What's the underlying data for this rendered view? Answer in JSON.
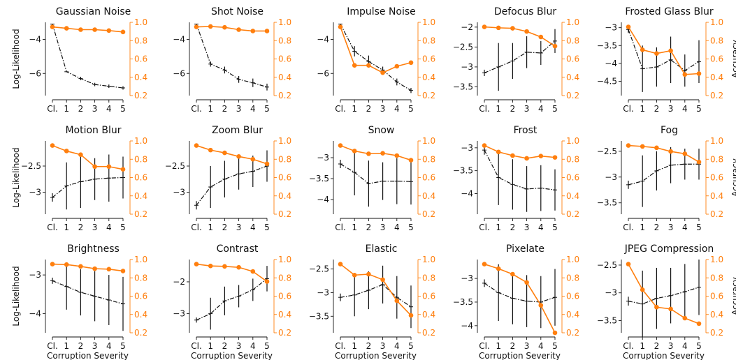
{
  "figure": {
    "severity_labels": [
      "Cl.",
      "1",
      "2",
      "3",
      "4",
      "5"
    ],
    "xlabel": "Corruption Severity",
    "ylabel_left": "Log-Likelihood",
    "ylabel_right": "Accuracy",
    "colors": {
      "loglik": "#111111",
      "accuracy": "#ff7f0e"
    }
  },
  "chart_data": [
    {
      "type": "line",
      "title": "Gaussian Noise",
      "x": [
        "Cl.",
        "1",
        "2",
        "3",
        "4",
        "5"
      ],
      "ylim_left": [
        -7.3,
        -3.0
      ],
      "yticks_left": [
        -4,
        -6
      ],
      "ylim_right": [
        0.2,
        1.0
      ],
      "yticks_right": [
        1.0,
        0.8,
        0.6,
        0.4,
        0.2
      ],
      "series": [
        {
          "name": "Log-Likelihood",
          "axis": "left",
          "style": "dash-dot",
          "values": [
            -3.1,
            -5.9,
            -6.3,
            -6.65,
            -6.75,
            -6.85
          ],
          "err": [
            0,
            0,
            0.1,
            0.1,
            0.1,
            0.1
          ]
        },
        {
          "name": "Accuracy",
          "axis": "right",
          "style": "solid-marker",
          "values": [
            0.95,
            0.935,
            0.92,
            0.92,
            0.91,
            0.895
          ]
        }
      ]
    },
    {
      "type": "line",
      "title": "Shot Noise",
      "x": [
        "Cl.",
        "1",
        "2",
        "3",
        "4",
        "5"
      ],
      "ylim_left": [
        -7.3,
        -3.0
      ],
      "yticks_left": [
        -4,
        -6
      ],
      "ylim_right": [
        0.2,
        1.0
      ],
      "yticks_right": [
        1.0,
        0.8,
        0.6,
        0.4,
        0.2
      ],
      "series": [
        {
          "name": "Log-Likelihood",
          "axis": "left",
          "style": "dash-dot",
          "values": [
            -3.1,
            -5.45,
            -5.8,
            -6.35,
            -6.55,
            -6.8
          ],
          "err": [
            0,
            0.15,
            0.2,
            0.2,
            0.25,
            0.2
          ]
        },
        {
          "name": "Accuracy",
          "axis": "right",
          "style": "solid-marker",
          "values": [
            0.95,
            0.955,
            0.945,
            0.92,
            0.905,
            0.905
          ]
        }
      ]
    },
    {
      "type": "line",
      "title": "Impulse Noise",
      "x": [
        "Cl.",
        "1",
        "2",
        "3",
        "4",
        "5"
      ],
      "ylim_left": [
        -7.3,
        -3.0
      ],
      "yticks_left": [
        -4,
        -6
      ],
      "ylim_right": [
        0.2,
        1.0
      ],
      "yticks_right": [
        1.0,
        0.8,
        0.6,
        0.4,
        0.2
      ],
      "series": [
        {
          "name": "Log-Likelihood",
          "axis": "left",
          "style": "dash-dot",
          "values": [
            -3.1,
            -4.7,
            -5.3,
            -5.8,
            -6.5,
            -7.0
          ],
          "err": [
            0,
            0.3,
            0.35,
            0.2,
            0.2,
            0.15
          ]
        },
        {
          "name": "Accuracy",
          "axis": "right",
          "style": "solid-marker",
          "values": [
            0.95,
            0.53,
            0.53,
            0.45,
            0.52,
            0.56
          ]
        }
      ]
    },
    {
      "type": "line",
      "title": "Defocus Blur",
      "x": [
        "Cl.",
        "1",
        "2",
        "3",
        "4",
        "5"
      ],
      "ylim_left": [
        -3.72,
        -1.88
      ],
      "yticks_left": [
        -2.0,
        -2.5,
        -3.0,
        -3.5
      ],
      "ylim_right": [
        0.2,
        1.0
      ],
      "yticks_right": [
        1.0,
        0.8,
        0.6,
        0.4,
        0.2
      ],
      "series": [
        {
          "name": "Log-Likelihood",
          "axis": "left",
          "style": "dash-dot",
          "values": [
            -3.15,
            -3.0,
            -2.85,
            -2.63,
            -2.65,
            -2.35
          ],
          "err": [
            0.08,
            0.6,
            0.45,
            0.4,
            0.3,
            0.3
          ]
        },
        {
          "name": "Accuracy",
          "axis": "right",
          "style": "solid-marker",
          "values": [
            0.95,
            0.94,
            0.935,
            0.9,
            0.84,
            0.74
          ]
        }
      ]
    },
    {
      "type": "line",
      "title": "Frosted Glass Blur",
      "x": [
        "Cl.",
        "1",
        "2",
        "3",
        "4",
        "5"
      ],
      "ylim_left": [
        -4.9,
        -2.85
      ],
      "yticks_left": [
        -3.0,
        -3.5,
        -4.0,
        -4.5
      ],
      "ylim_right": [
        0.2,
        1.0
      ],
      "yticks_right": [
        1.0,
        0.8,
        0.6,
        0.4,
        0.2
      ],
      "series": [
        {
          "name": "Log-Likelihood",
          "axis": "left",
          "style": "dash-dot",
          "values": [
            -3.05,
            -4.15,
            -4.1,
            -3.9,
            -4.2,
            -3.95
          ],
          "err": [
            0.1,
            0.65,
            0.55,
            0.65,
            0.45,
            0.6
          ]
        },
        {
          "name": "Accuracy",
          "axis": "right",
          "style": "solid-marker",
          "values": [
            0.95,
            0.7,
            0.66,
            0.69,
            0.43,
            0.44
          ]
        }
      ]
    },
    {
      "type": "line",
      "title": "Motion Blur",
      "x": [
        "Cl.",
        "1",
        "2",
        "3",
        "4",
        "5"
      ],
      "ylim_left": [
        -3.42,
        -2.02
      ],
      "yticks_left": [
        -2.5,
        -3.0
      ],
      "ylim_right": [
        0.2,
        1.0
      ],
      "yticks_right": [
        1.0,
        0.8,
        0.6,
        0.4,
        0.2
      ],
      "series": [
        {
          "name": "Log-Likelihood",
          "axis": "left",
          "style": "dash-dot",
          "values": [
            -3.1,
            -2.88,
            -2.8,
            -2.75,
            -2.73,
            -2.72
          ],
          "err": [
            0.08,
            0.45,
            0.5,
            0.4,
            0.45,
            0.4
          ]
        },
        {
          "name": "Accuracy",
          "axis": "right",
          "style": "solid-marker",
          "values": [
            0.95,
            0.89,
            0.85,
            0.72,
            0.72,
            0.69
          ]
        }
      ]
    },
    {
      "type": "line",
      "title": "Zoom Blur",
      "x": [
        "Cl.",
        "1",
        "2",
        "3",
        "4",
        "5"
      ],
      "ylim_left": [
        -3.42,
        -2.02
      ],
      "yticks_left": [
        -2.5,
        -3.0
      ],
      "ylim_right": [
        0.2,
        1.0
      ],
      "yticks_right": [
        1.0,
        0.8,
        0.6,
        0.4,
        0.2
      ],
      "series": [
        {
          "name": "Log-Likelihood",
          "axis": "left",
          "style": "dash-dot",
          "values": [
            -3.25,
            -2.9,
            -2.75,
            -2.65,
            -2.6,
            -2.5
          ],
          "err": [
            0.08,
            0.4,
            0.35,
            0.3,
            0.3,
            0.3
          ]
        },
        {
          "name": "Accuracy",
          "axis": "right",
          "style": "solid-marker",
          "values": [
            0.95,
            0.9,
            0.87,
            0.83,
            0.8,
            0.75
          ]
        }
      ]
    },
    {
      "type": "line",
      "title": "Snow",
      "x": [
        "Cl.",
        "1",
        "2",
        "3",
        "4",
        "5"
      ],
      "ylim_left": [
        -4.35,
        -2.6
      ],
      "yticks_left": [
        -3.0,
        -3.5,
        -4.0
      ],
      "ylim_right": [
        0.2,
        1.0
      ],
      "yticks_right": [
        1.0,
        0.8,
        0.6,
        0.4,
        0.2
      ],
      "series": [
        {
          "name": "Log-Likelihood",
          "axis": "left",
          "style": "dash-dot",
          "values": [
            -3.15,
            -3.35,
            -3.62,
            -3.56,
            -3.56,
            -3.57
          ],
          "err": [
            0.1,
            0.55,
            0.55,
            0.45,
            0.55,
            0.55
          ]
        },
        {
          "name": "Accuracy",
          "axis": "right",
          "style": "solid-marker",
          "values": [
            0.95,
            0.89,
            0.86,
            0.865,
            0.84,
            0.79
          ]
        }
      ]
    },
    {
      "type": "line",
      "title": "Frost",
      "x": [
        "Cl.",
        "1",
        "2",
        "3",
        "4",
        "5"
      ],
      "ylim_left": [
        -4.45,
        -2.85
      ],
      "yticks_left": [
        -3.0,
        -3.5,
        -4.0
      ],
      "ylim_right": [
        0.2,
        1.0
      ],
      "yticks_right": [
        1.0,
        0.8,
        0.6,
        0.4,
        0.2
      ],
      "series": [
        {
          "name": "Log-Likelihood",
          "axis": "left",
          "style": "dash-dot",
          "values": [
            -3.05,
            -3.65,
            -3.8,
            -3.9,
            -3.88,
            -3.92
          ],
          "err": [
            0.1,
            0.6,
            0.55,
            0.5,
            0.5,
            0.45
          ]
        },
        {
          "name": "Accuracy",
          "axis": "right",
          "style": "solid-marker",
          "values": [
            0.95,
            0.88,
            0.84,
            0.81,
            0.835,
            0.82
          ]
        }
      ]
    },
    {
      "type": "line",
      "title": "Fog",
      "x": [
        "Cl.",
        "1",
        "2",
        "3",
        "4",
        "5"
      ],
      "ylim_left": [
        -3.72,
        -2.3
      ],
      "yticks_left": [
        -2.5,
        -3.0,
        -3.5
      ],
      "ylim_right": [
        0.2,
        1.0
      ],
      "yticks_right": [
        1.0,
        0.8,
        0.6,
        0.4,
        0.2
      ],
      "series": [
        {
          "name": "Log-Likelihood",
          "axis": "left",
          "style": "dash-dot",
          "values": [
            -3.15,
            -3.08,
            -2.88,
            -2.77,
            -2.75,
            -2.75
          ],
          "err": [
            0.08,
            0.5,
            0.38,
            0.35,
            0.3,
            0.3
          ]
        },
        {
          "name": "Accuracy",
          "axis": "right",
          "style": "solid-marker",
          "values": [
            0.95,
            0.94,
            0.925,
            0.885,
            0.86,
            0.77
          ]
        }
      ]
    },
    {
      "type": "line",
      "title": "Brightness",
      "x": [
        "Cl.",
        "1",
        "2",
        "3",
        "4",
        "5"
      ],
      "ylim_left": [
        -4.5,
        -2.6
      ],
      "yticks_left": [
        -3,
        -4
      ],
      "ylim_right": [
        0.2,
        1.0
      ],
      "yticks_right": [
        1.0,
        0.8,
        0.6,
        0.4,
        0.2
      ],
      "series": [
        {
          "name": "Log-Likelihood",
          "axis": "left",
          "style": "dash-dot",
          "values": [
            -3.15,
            -3.3,
            -3.45,
            -3.55,
            -3.65,
            -3.75
          ],
          "err": [
            0.08,
            0.6,
            0.6,
            0.65,
            0.65,
            0.7
          ]
        },
        {
          "name": "Accuracy",
          "axis": "right",
          "style": "solid-marker",
          "values": [
            0.95,
            0.945,
            0.925,
            0.9,
            0.895,
            0.875
          ]
        }
      ]
    },
    {
      "type": "line",
      "title": "Contrast",
      "x": [
        "Cl.",
        "1",
        "2",
        "3",
        "4",
        "5"
      ],
      "ylim_left": [
        -3.6,
        -1.3
      ],
      "yticks_left": [
        -2,
        -3
      ],
      "ylim_right": [
        0.2,
        1.0
      ],
      "yticks_right": [
        1.0,
        0.8,
        0.6,
        0.4,
        0.2
      ],
      "series": [
        {
          "name": "Log-Likelihood",
          "axis": "left",
          "style": "dash-dot",
          "values": [
            -3.2,
            -3.0,
            -2.6,
            -2.45,
            -2.25,
            -1.9
          ],
          "err": [
            0.08,
            0.5,
            0.45,
            0.35,
            0.35,
            0.4
          ]
        },
        {
          "name": "Accuracy",
          "axis": "right",
          "style": "solid-marker",
          "values": [
            0.95,
            0.93,
            0.925,
            0.915,
            0.87,
            0.76
          ]
        }
      ]
    },
    {
      "type": "line",
      "title": "Elastic",
      "x": [
        "Cl.",
        "1",
        "2",
        "3",
        "4",
        "5"
      ],
      "ylim_left": [
        -3.85,
        -2.3
      ],
      "yticks_left": [
        -2.5,
        -3.0,
        -3.5
      ],
      "ylim_right": [
        0.2,
        1.0
      ],
      "yticks_right": [
        1.0,
        0.8,
        0.6,
        0.4,
        0.2
      ],
      "series": [
        {
          "name": "Log-Likelihood",
          "axis": "left",
          "style": "dash-dot",
          "values": [
            -3.1,
            -3.05,
            -2.95,
            -2.83,
            -3.1,
            -3.3
          ],
          "err": [
            0.08,
            0.45,
            0.4,
            0.4,
            0.45,
            0.45
          ]
        },
        {
          "name": "Accuracy",
          "axis": "right",
          "style": "solid-marker",
          "values": [
            0.95,
            0.83,
            0.84,
            0.78,
            0.55,
            0.39
          ]
        }
      ]
    },
    {
      "type": "line",
      "title": "Pixelate",
      "x": [
        "Cl.",
        "1",
        "2",
        "3",
        "4",
        "5"
      ],
      "ylim_left": [
        -4.15,
        -2.6
      ],
      "yticks_left": [
        -3.0,
        -3.5,
        -4.0
      ],
      "ylim_right": [
        0.2,
        1.0
      ],
      "yticks_right": [
        1.0,
        0.8,
        0.6,
        0.4,
        0.2
      ],
      "series": [
        {
          "name": "Log-Likelihood",
          "axis": "left",
          "style": "dash-dot",
          "values": [
            -3.1,
            -3.3,
            -3.42,
            -3.48,
            -3.5,
            -3.4
          ],
          "err": [
            0.08,
            0.6,
            0.55,
            0.55,
            0.55,
            0.6
          ]
        },
        {
          "name": "Accuracy",
          "axis": "right",
          "style": "solid-marker",
          "values": [
            0.95,
            0.9,
            0.84,
            0.75,
            0.5,
            0.2
          ]
        }
      ]
    },
    {
      "type": "line",
      "title": "JPEG Compression",
      "x": [
        "Cl.",
        "1",
        "2",
        "3",
        "4",
        "5"
      ],
      "ylim_left": [
        -3.72,
        -2.4
      ],
      "yticks_left": [
        -2.5,
        -3.0,
        -3.5
      ],
      "ylim_right": [
        0.2,
        1.0
      ],
      "yticks_right": [
        1.0,
        0.8,
        0.6,
        0.4,
        0.2
      ],
      "series": [
        {
          "name": "Log-Likelihood",
          "axis": "left",
          "style": "dash-dot",
          "values": [
            -3.15,
            -3.2,
            -3.1,
            -3.05,
            -2.98,
            -2.9
          ],
          "err": [
            0.08,
            0.6,
            0.55,
            0.5,
            0.5,
            0.5
          ]
        },
        {
          "name": "Accuracy",
          "axis": "right",
          "style": "solid-marker",
          "values": [
            0.95,
            0.67,
            0.48,
            0.46,
            0.36,
            0.3
          ]
        }
      ]
    }
  ]
}
